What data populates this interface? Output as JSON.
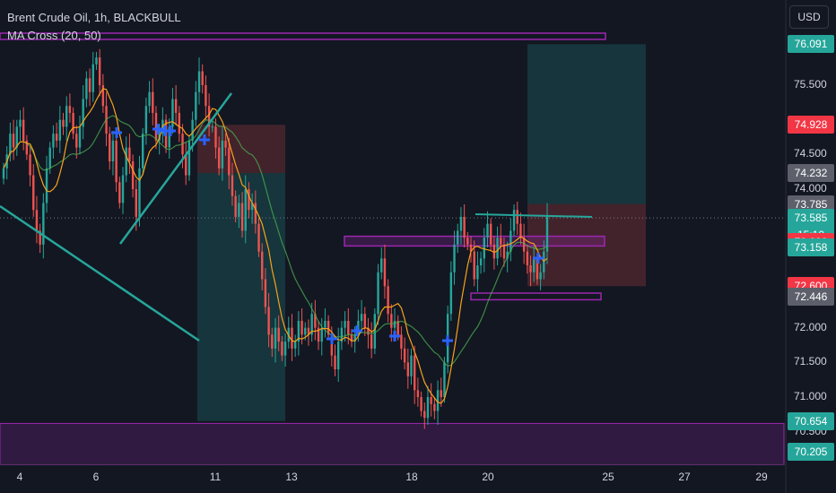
{
  "header": {
    "title": "Brent Crude Oil, 1h, BLACKBULL",
    "indicator": "MA Cross (20, 50)",
    "currency_button": "USD"
  },
  "colors": {
    "background": "#131722",
    "up_candle": "#26a69a",
    "down_candle": "#ef5350",
    "ma_fast": "#f7a21b",
    "ma_slow": "#4caf50",
    "cross_marker": "#2962ff",
    "zone": "#9c27b0",
    "trendline": "#26a69a"
  },
  "chart_data": {
    "type": "candlestick",
    "symbol": "Brent Crude Oil",
    "timeframe": "1h",
    "ylim": [
      70.1,
      76.25
    ],
    "y_ticks": [
      {
        "value": 75.5,
        "label": "75.500"
      },
      {
        "value": 74.5,
        "label": "74.500"
      },
      {
        "value": 74.0,
        "label": "74.000"
      },
      {
        "value": 72.0,
        "label": "72.000"
      },
      {
        "value": 71.5,
        "label": "71.500"
      },
      {
        "value": 71.0,
        "label": "71.000"
      },
      {
        "value": 70.5,
        "label": "70.500"
      }
    ],
    "x_ticks": [
      "4",
      "6",
      "11",
      "13",
      "18",
      "20",
      "25",
      "27",
      "29"
    ],
    "price_badges": [
      {
        "value": 76.091,
        "label": "76.091",
        "color": "#26a69a"
      },
      {
        "value": 74.928,
        "label": "74.928",
        "color": "#f23645"
      },
      {
        "value": 74.232,
        "label": "74.232",
        "color": "#5d606b"
      },
      {
        "value": 73.785,
        "label": "73.785",
        "color": "#5d606b"
      },
      {
        "value": 73.585,
        "label": "73.585",
        "color": "#26a69a",
        "countdown": "15:10"
      },
      {
        "value": 73.232,
        "label": "73.232",
        "color": "#f23645"
      },
      {
        "value": 73.158,
        "label": "73.158",
        "color": "#26a69a"
      },
      {
        "value": 72.6,
        "label": "72.600",
        "color": "#f23645"
      },
      {
        "value": 72.446,
        "label": "72.446",
        "color": "#5d606b"
      },
      {
        "value": 70.654,
        "label": "70.654",
        "color": "#26a69a"
      },
      {
        "value": 70.205,
        "label": "70.205",
        "color": "#26a69a"
      }
    ],
    "last_price": 73.585,
    "close_series": [
      74.3,
      74.5,
      74.8,
      74.6,
      74.9,
      75.0,
      74.7,
      74.5,
      74.2,
      73.7,
      73.4,
      73.2,
      73.8,
      74.3,
      74.6,
      74.8,
      74.7,
      75.0,
      74.9,
      75.2,
      75.1,
      74.8,
      74.6,
      74.9,
      75.3,
      75.6,
      75.4,
      75.8,
      75.9,
      75.5,
      75.2,
      74.8,
      74.4,
      74.7,
      74.1,
      73.8,
      74.2,
      74.6,
      74.4,
      74.0,
      73.6,
      74.3,
      74.8,
      75.2,
      75.4,
      75.1,
      74.7,
      74.8,
      75.0,
      74.6,
      74.9,
      75.3,
      75.1,
      74.8,
      74.5,
      74.2,
      74.7,
      75.0,
      75.4,
      75.7,
      75.5,
      75.2,
      74.9,
      74.9,
      74.6,
      74.3,
      74.7,
      74.6,
      74.2,
      73.9,
      73.6,
      73.8,
      73.4,
      74.0,
      73.7,
      73.8,
      73.5,
      73.1,
      72.7,
      72.3,
      71.9,
      71.7,
      72.0,
      71.8,
      71.6,
      71.8,
      72.0,
      71.7,
      71.8,
      72.1,
      71.9,
      72.0,
      71.9,
      72.2,
      72.0,
      71.8,
      72.0,
      72.1,
      71.9,
      71.6,
      71.4,
      71.8,
      72.0,
      72.1,
      71.9,
      71.8,
      71.9,
      72.1,
      72.2,
      72.0,
      71.9,
      71.7,
      72.2,
      72.8,
      73.0,
      72.6,
      72.2,
      72.0,
      72.1,
      71.9,
      71.7,
      71.5,
      71.3,
      71.6,
      71.1,
      71.0,
      70.8,
      70.7,
      71.0,
      70.9,
      70.8,
      71.1,
      71.0,
      71.5,
      72.2,
      72.8,
      73.2,
      73.4,
      73.6,
      73.3,
      73.2,
      73.1,
      72.7,
      72.9,
      73.0,
      73.3,
      73.5,
      73.2,
      73.0,
      73.3,
      73.2,
      73.0,
      73.1,
      73.4,
      73.7,
      73.5,
      73.3,
      73.1,
      72.9,
      72.8,
      73.0,
      72.7,
      72.8,
      73.1,
      73.6
    ]
  }
}
